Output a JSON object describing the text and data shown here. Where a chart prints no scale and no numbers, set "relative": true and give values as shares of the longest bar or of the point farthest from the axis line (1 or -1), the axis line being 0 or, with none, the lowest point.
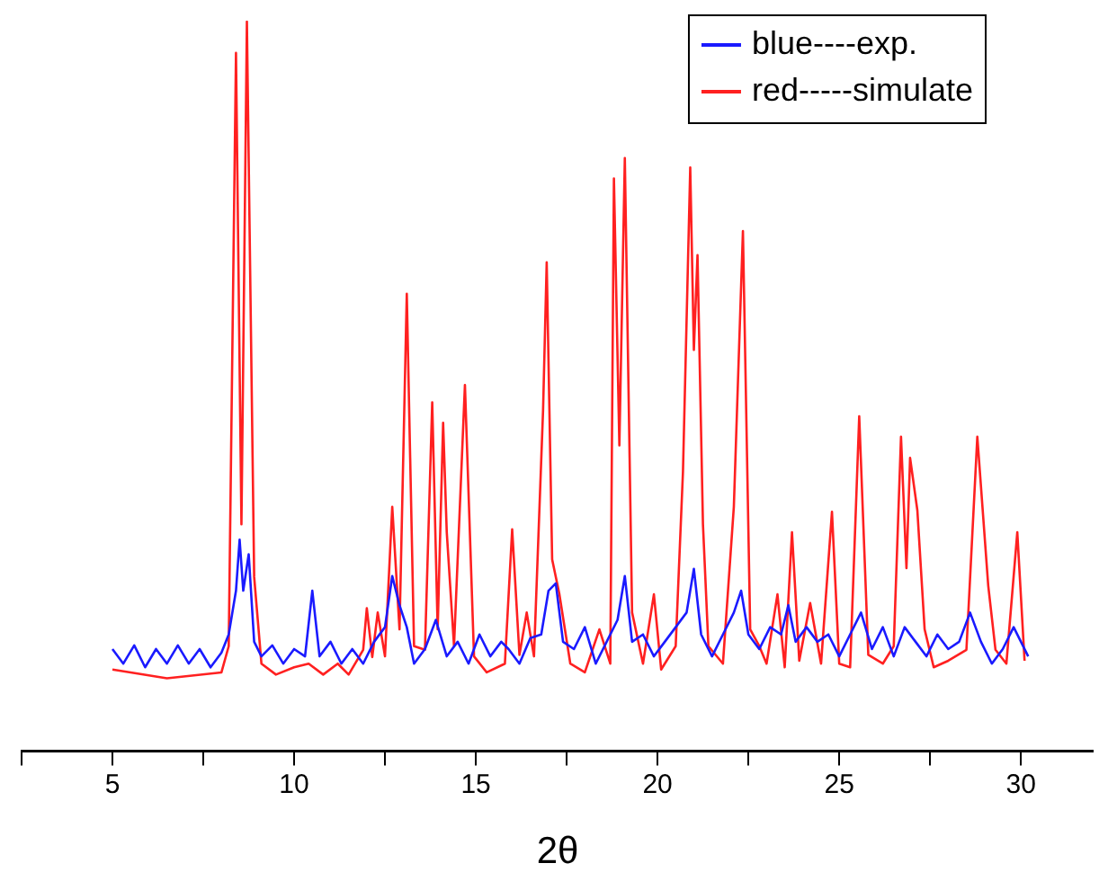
{
  "chart_data": {
    "type": "line",
    "xlabel": "2θ",
    "relative": true,
    "legend": "top right",
    "grid": false,
    "marker": "none",
    "line_style": "solid",
    "xlim": [
      2.5,
      32
    ],
    "xticks": [
      {
        "value": 2.5,
        "label": null
      },
      5,
      {
        "value": 7.5,
        "label": null
      },
      10,
      {
        "value": 12.5,
        "label": null
      },
      15,
      {
        "value": 17.5,
        "label": null
      },
      20,
      {
        "value": 22.5,
        "label": null
      },
      25,
      {
        "value": 27.5,
        "label": null
      },
      30
    ],
    "series": [
      {
        "name": "blue----exp.",
        "color": "#1a1aff",
        "x": [
          5.0,
          5.3,
          5.6,
          5.9,
          6.2,
          6.5,
          6.8,
          7.1,
          7.4,
          7.7,
          8.0,
          8.2,
          8.4,
          8.5,
          8.6,
          8.75,
          8.9,
          9.1,
          9.4,
          9.7,
          10.0,
          10.3,
          10.5,
          10.7,
          11.0,
          11.3,
          11.6,
          11.9,
          12.2,
          12.5,
          12.7,
          12.9,
          13.1,
          13.3,
          13.6,
          13.9,
          14.2,
          14.5,
          14.8,
          15.1,
          15.4,
          15.7,
          15.9,
          16.2,
          16.5,
          16.8,
          17.0,
          17.2,
          17.4,
          17.7,
          18.0,
          18.3,
          18.6,
          18.9,
          19.1,
          19.3,
          19.6,
          19.9,
          20.2,
          20.5,
          20.8,
          21.0,
          21.2,
          21.5,
          21.8,
          22.1,
          22.3,
          22.5,
          22.8,
          23.1,
          23.4,
          23.6,
          23.8,
          24.1,
          24.4,
          24.7,
          25.0,
          25.3,
          25.6,
          25.9,
          26.2,
          26.5,
          26.8,
          27.1,
          27.4,
          27.7,
          28.0,
          28.3,
          28.6,
          28.9,
          29.2,
          29.5,
          29.8,
          30.0,
          30.2
        ],
        "values": [
          0.14,
          0.12,
          0.145,
          0.115,
          0.14,
          0.12,
          0.145,
          0.12,
          0.14,
          0.115,
          0.135,
          0.16,
          0.22,
          0.29,
          0.22,
          0.27,
          0.15,
          0.13,
          0.145,
          0.12,
          0.14,
          0.13,
          0.22,
          0.13,
          0.15,
          0.12,
          0.14,
          0.12,
          0.15,
          0.17,
          0.24,
          0.2,
          0.17,
          0.12,
          0.14,
          0.18,
          0.13,
          0.15,
          0.12,
          0.16,
          0.13,
          0.15,
          0.14,
          0.12,
          0.155,
          0.16,
          0.22,
          0.23,
          0.15,
          0.14,
          0.17,
          0.12,
          0.15,
          0.18,
          0.24,
          0.15,
          0.16,
          0.13,
          0.15,
          0.17,
          0.19,
          0.25,
          0.16,
          0.13,
          0.16,
          0.19,
          0.22,
          0.16,
          0.14,
          0.17,
          0.16,
          0.2,
          0.15,
          0.17,
          0.15,
          0.16,
          0.13,
          0.16,
          0.19,
          0.14,
          0.17,
          0.13,
          0.17,
          0.15,
          0.13,
          0.16,
          0.14,
          0.15,
          0.19,
          0.15,
          0.12,
          0.14,
          0.17,
          0.15,
          0.13
        ]
      },
      {
        "name": "red-----simulate",
        "color": "#ff2020",
        "x": [
          5.0,
          6.5,
          8.0,
          8.2,
          8.4,
          8.55,
          8.7,
          8.9,
          9.1,
          9.5,
          10.0,
          10.4,
          10.8,
          11.2,
          11.5,
          11.9,
          12.0,
          12.15,
          12.3,
          12.5,
          12.7,
          12.9,
          13.1,
          13.3,
          13.6,
          13.8,
          13.95,
          14.1,
          14.2,
          14.4,
          14.7,
          14.95,
          15.3,
          15.8,
          16.0,
          16.2,
          16.4,
          16.6,
          16.85,
          16.95,
          17.1,
          17.3,
          17.6,
          18.0,
          18.4,
          18.7,
          18.8,
          18.95,
          19.1,
          19.3,
          19.6,
          19.9,
          20.1,
          20.5,
          20.7,
          20.9,
          21.0,
          21.1,
          21.25,
          21.4,
          21.8,
          22.1,
          22.35,
          22.55,
          22.8,
          23.0,
          23.3,
          23.5,
          23.7,
          23.9,
          24.2,
          24.5,
          24.8,
          25.0,
          25.3,
          25.55,
          25.8,
          26.2,
          26.5,
          26.7,
          26.85,
          26.95,
          27.15,
          27.35,
          27.6,
          28.0,
          28.5,
          28.8,
          29.1,
          29.3,
          29.6,
          29.9,
          30.1
        ],
        "values": [
          0.112,
          0.1,
          0.108,
          0.144,
          0.957,
          0.311,
          1.0,
          0.239,
          0.12,
          0.105,
          0.115,
          0.12,
          0.105,
          0.12,
          0.105,
          0.139,
          0.196,
          0.129,
          0.19,
          0.13,
          0.335,
          0.167,
          0.627,
          0.144,
          0.139,
          0.478,
          0.167,
          0.45,
          0.3,
          0.144,
          0.502,
          0.13,
          0.108,
          0.12,
          0.304,
          0.132,
          0.19,
          0.13,
          0.467,
          0.67,
          0.263,
          0.215,
          0.12,
          0.108,
          0.167,
          0.12,
          0.785,
          0.419,
          0.813,
          0.19,
          0.12,
          0.215,
          0.112,
          0.144,
          0.383,
          0.8,
          0.55,
          0.68,
          0.311,
          0.144,
          0.12,
          0.335,
          0.713,
          0.167,
          0.144,
          0.12,
          0.215,
          0.115,
          0.3,
          0.124,
          0.203,
          0.12,
          0.328,
          0.12,
          0.115,
          0.459,
          0.132,
          0.12,
          0.144,
          0.431,
          0.251,
          0.402,
          0.33,
          0.167,
          0.115,
          0.124,
          0.139,
          0.431,
          0.227,
          0.139,
          0.12,
          0.3,
          0.124
        ]
      }
    ]
  }
}
